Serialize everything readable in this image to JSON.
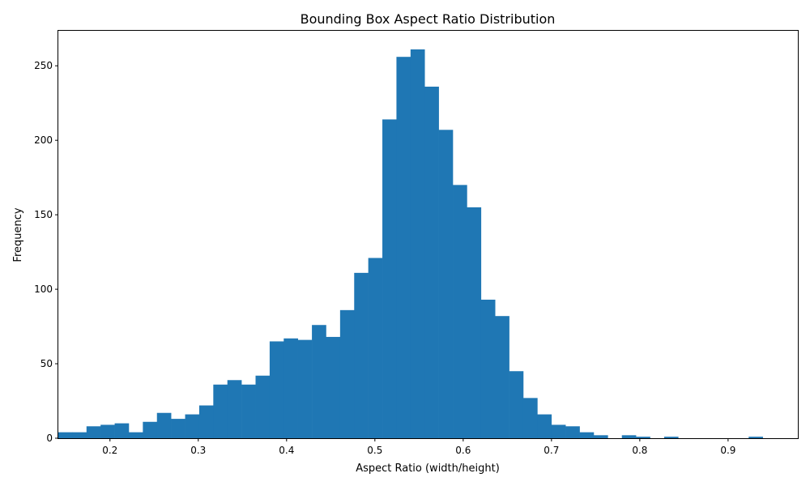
{
  "chart_data": {
    "type": "bar",
    "title": "Bounding Box Aspect Ratio Distribution",
    "xlabel": "Aspect Ratio (width/height)",
    "ylabel": "Frequency",
    "xlim": [
      0.1415,
      0.979
    ],
    "ylim": [
      0,
      274.05
    ],
    "bar_color": "#1f77b4",
    "xticks": [
      0.2,
      0.3,
      0.4,
      0.5,
      0.6,
      0.7,
      0.8,
      0.9
    ],
    "xtick_labels": [
      "0.2",
      "0.3",
      "0.4",
      "0.5",
      "0.6",
      "0.7",
      "0.8",
      "0.9"
    ],
    "yticks": [
      0,
      50,
      100,
      150,
      200,
      250
    ],
    "ytick_labels": [
      "0",
      "50",
      "100",
      "150",
      "200",
      "250"
    ],
    "bins": {
      "start": 0.1415,
      "width": 0.015955,
      "counts": [
        4,
        4,
        8,
        9,
        10,
        4,
        11,
        17,
        13,
        16,
        22,
        36,
        39,
        36,
        42,
        65,
        67,
        66,
        76,
        68,
        86,
        111,
        121,
        214,
        256,
        261,
        236,
        207,
        170,
        155,
        93,
        82,
        45,
        27,
        16,
        9,
        8,
        4,
        2,
        0,
        2,
        1,
        0,
        1,
        0,
        0,
        0,
        0,
        0,
        1
      ]
    }
  }
}
